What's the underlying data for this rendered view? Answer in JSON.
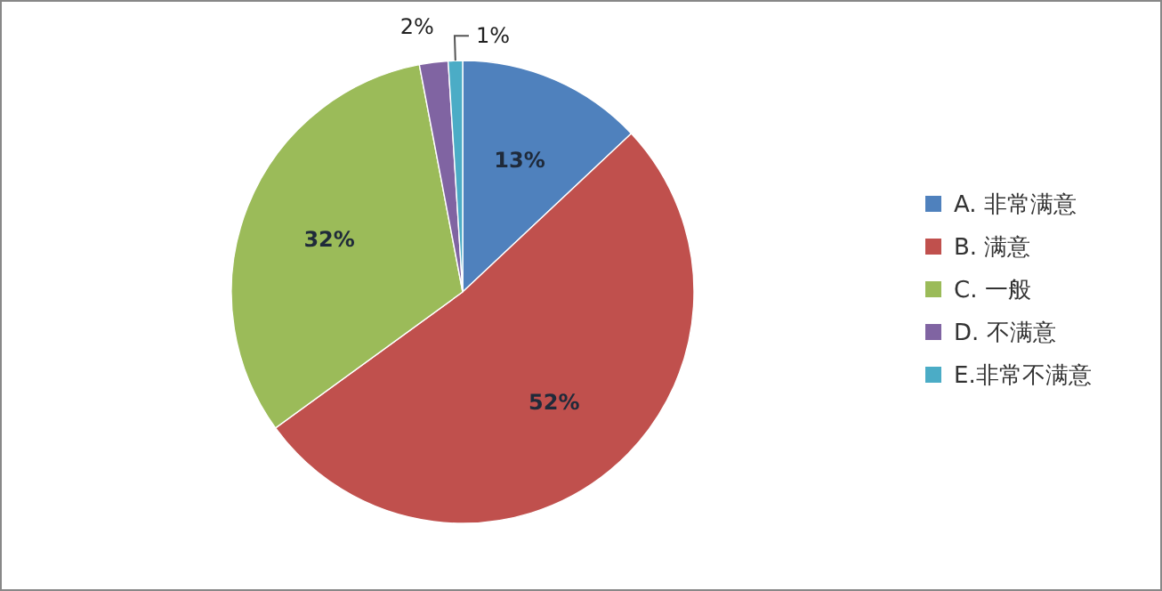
{
  "chart_data": {
    "type": "pie",
    "categories": [
      "A. 非常满意",
      "B. 满意",
      "C. 一般",
      "D. 不满意",
      "E.非常不满意"
    ],
    "values": [
      13,
      52,
      32,
      2,
      1
    ],
    "value_labels": [
      "13%",
      "52%",
      "32%",
      "2%",
      "1%"
    ],
    "colors": [
      "#4f81bd",
      "#c0504d",
      "#9bbb59",
      "#8064a2",
      "#4bacc6"
    ],
    "legend": "right"
  }
}
